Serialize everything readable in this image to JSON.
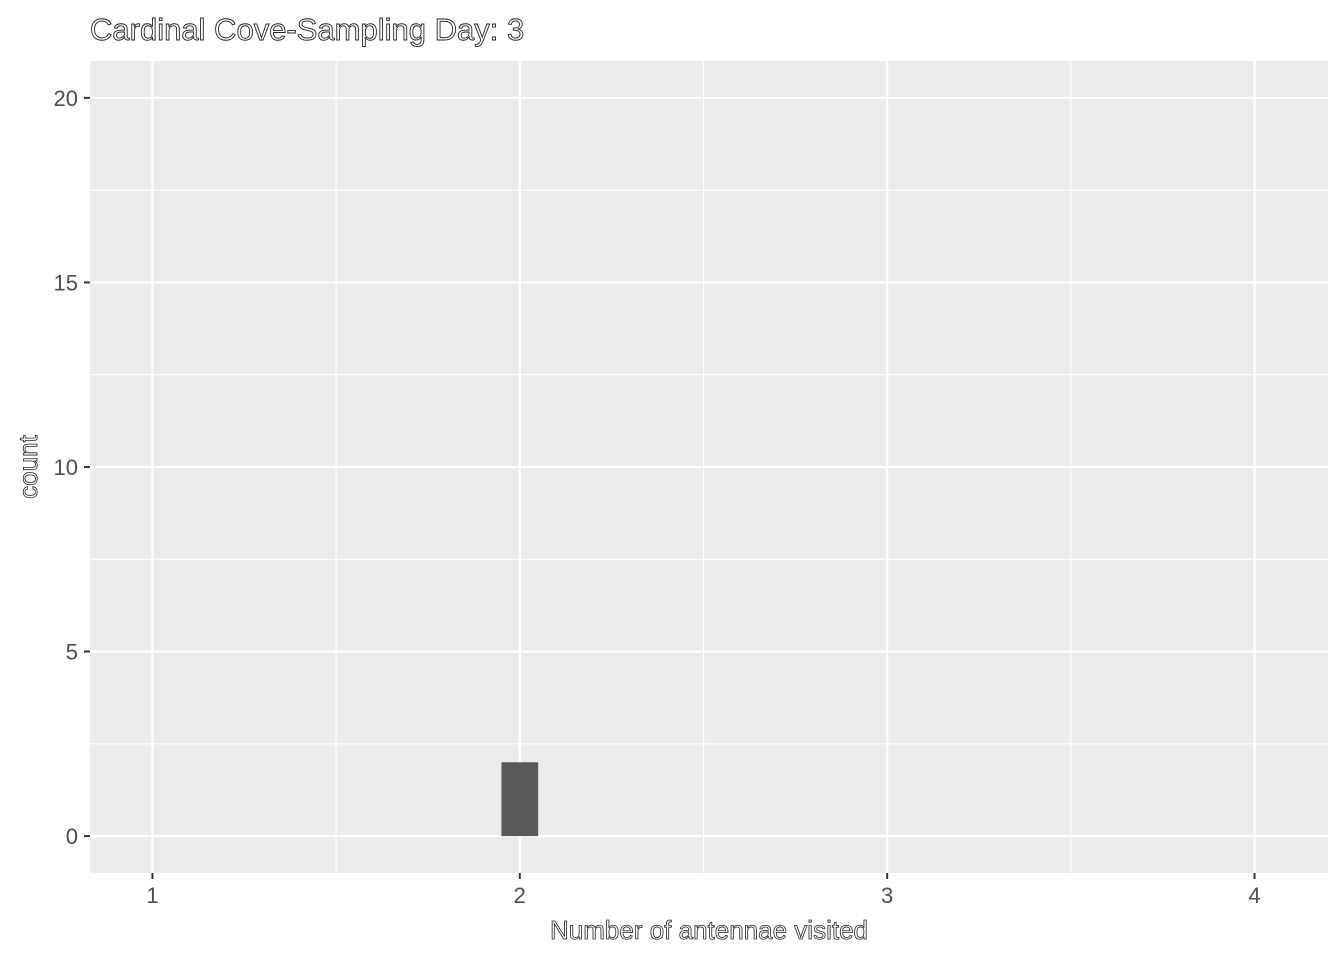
{
  "chart_data": {
    "type": "bar",
    "title": "Cardinal Cove-Sampling Day: 3",
    "xlabel": "Number of antennae visited",
    "ylabel": "count",
    "x_ticks": [
      1,
      2,
      3,
      4
    ],
    "y_ticks": [
      0,
      5,
      10,
      15,
      20
    ],
    "xlim": [
      0.83,
      4.2
    ],
    "ylim": [
      -1,
      21
    ],
    "bar_width": 0.1,
    "bars": [
      {
        "x": 2,
        "count": 2
      }
    ],
    "colors": {
      "panel": "#ebebeb",
      "grid": "#ffffff",
      "bar": "#595959",
      "tick": "#333333",
      "text": "#4d4d4d"
    },
    "grid": true,
    "legend": "none"
  }
}
